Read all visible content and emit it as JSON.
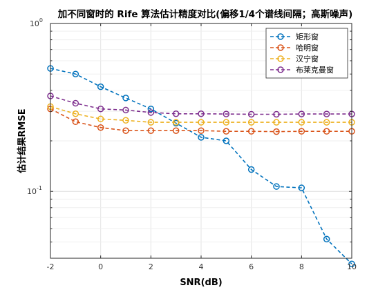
{
  "chart_data": {
    "type": "line",
    "title": "加不同窗时的 Rife 算法估计精度对比(偏移1/4个谱线间隔；高斯噪声)",
    "xlabel": "SNR(dB)",
    "ylabel": "估计结果RMSE",
    "x": [
      -2,
      -1,
      0,
      1,
      2,
      3,
      4,
      5,
      6,
      7,
      8,
      9,
      10
    ],
    "xlim": [
      -2,
      10
    ],
    "xticks": [
      -2,
      0,
      2,
      4,
      6,
      8,
      10
    ],
    "xtick_labels": [
      "-2",
      "0",
      "2",
      "4",
      "6",
      "8",
      "10"
    ],
    "yscale": "log",
    "ylim": [
      0.04,
      1
    ],
    "yticks": [
      0.1,
      1
    ],
    "ytick_labels": {
      "e-1": {
        "base": "10",
        "exp": "-1"
      },
      "e0": {
        "base": "10",
        "exp": "0"
      }
    },
    "grid": true,
    "legend_position": "top-right",
    "series": [
      {
        "name": "矩形窗",
        "color": "#0072BD",
        "values": [
          0.54,
          0.5,
          0.42,
          0.36,
          0.31,
          0.255,
          0.21,
          0.2,
          0.135,
          0.107,
          0.105,
          0.052,
          0.037
        ]
      },
      {
        "name": "哈明窗",
        "color": "#D95319",
        "values": [
          0.31,
          0.26,
          0.24,
          0.23,
          0.23,
          0.23,
          0.23,
          0.228,
          0.228,
          0.227,
          0.228,
          0.228,
          0.228
        ]
      },
      {
        "name": "汉宁窗",
        "color": "#EDB120",
        "values": [
          0.32,
          0.29,
          0.27,
          0.265,
          0.258,
          0.258,
          0.258,
          0.258,
          0.258,
          0.258,
          0.258,
          0.258,
          0.258
        ]
      },
      {
        "name": "布莱克曼窗",
        "color": "#7E2F8E",
        "values": [
          0.37,
          0.335,
          0.31,
          0.305,
          0.295,
          0.29,
          0.29,
          0.289,
          0.288,
          0.288,
          0.289,
          0.289,
          0.289
        ]
      }
    ]
  }
}
